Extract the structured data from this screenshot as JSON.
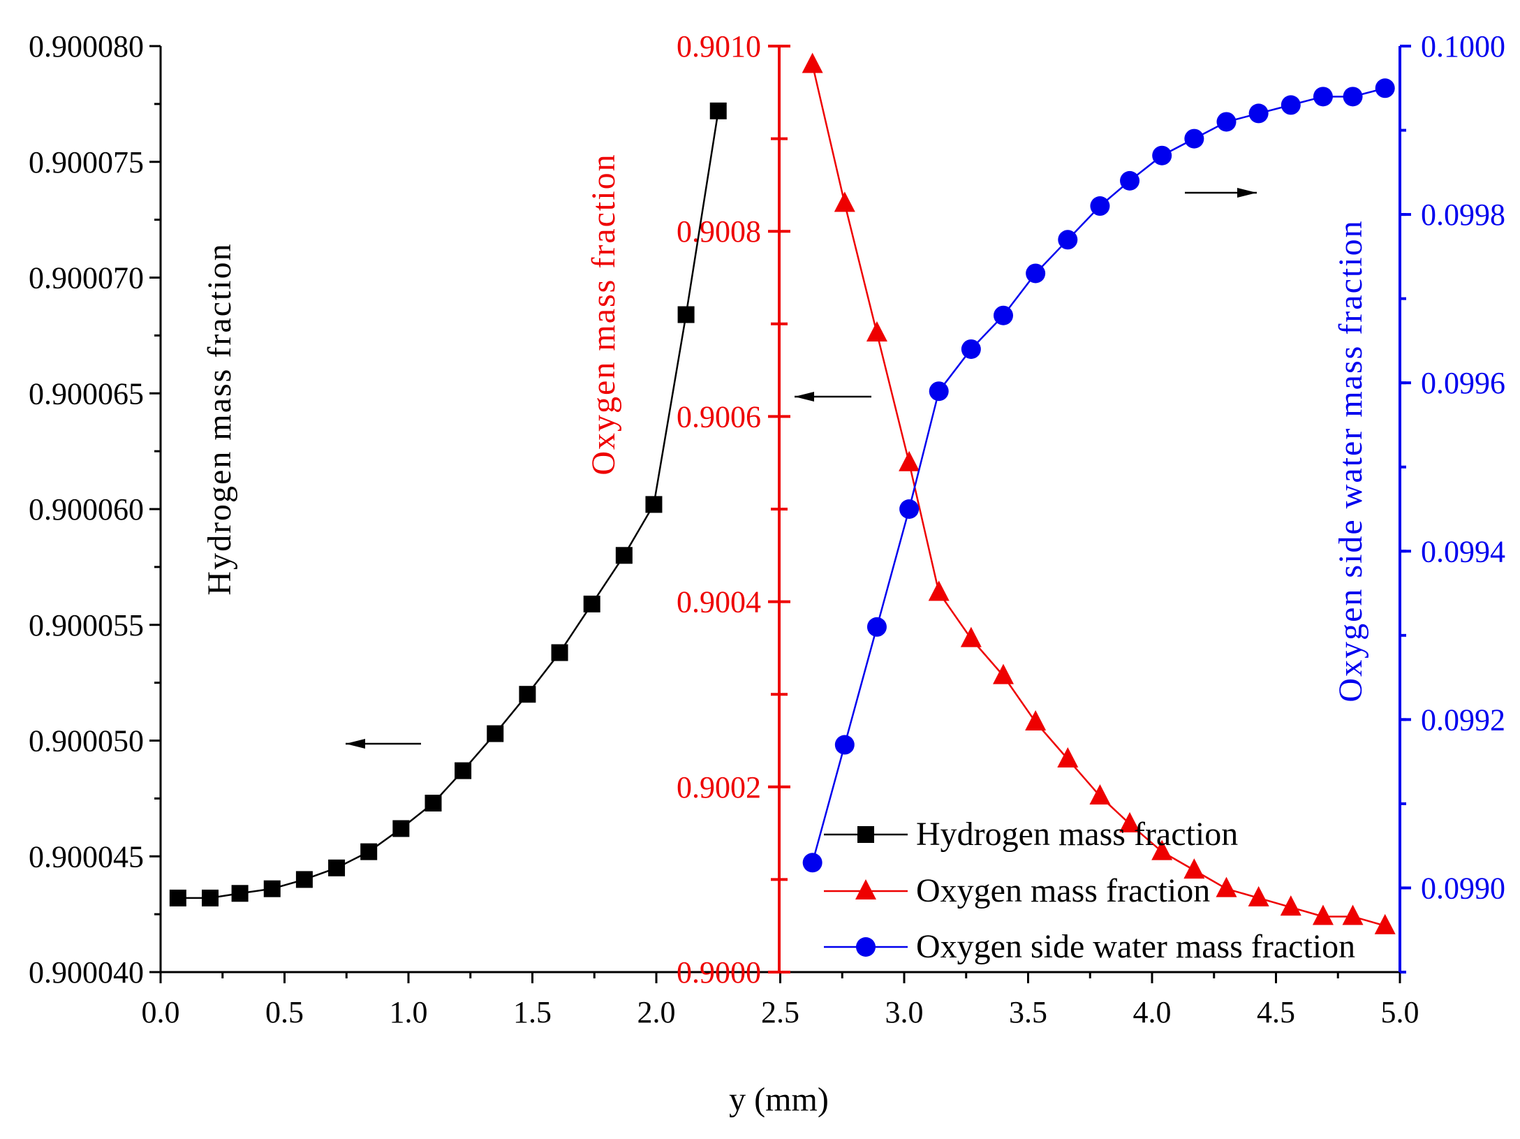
{
  "chart_data": {
    "type": "line",
    "xlabel": "y (mm)",
    "xlim": [
      0,
      5
    ],
    "x_ticks": [
      "0.0",
      "0.5",
      "1.0",
      "1.5",
      "2.0",
      "2.5",
      "3.0",
      "3.5",
      "4.0",
      "4.5",
      "5.0"
    ],
    "axes": {
      "left": {
        "label": "Hydrogen mass fraction",
        "ylim": [
          0.90004,
          0.90008
        ],
        "ticks": [
          "0.900040",
          "0.900045",
          "0.900050",
          "0.900055",
          "0.900060",
          "0.900065",
          "0.900070",
          "0.900075",
          "0.900080"
        ],
        "color": "#000000"
      },
      "middle": {
        "label": "Oxygen mass fraction",
        "ylim": [
          0.9,
          0.901
        ],
        "ticks": [
          "0.9000",
          "0.9002",
          "0.9004",
          "0.9006",
          "0.9008",
          "0.9010"
        ],
        "color": "#ee0000"
      },
      "right": {
        "label": "Oxygen side water mass fraction",
        "ylim": [
          0.0989,
          0.1
        ],
        "ticks": [
          "0.0990",
          "0.0992",
          "0.0994",
          "0.0996",
          "0.0998",
          "0.1000"
        ],
        "color": "#0000ee"
      }
    },
    "series": [
      {
        "name": "Hydrogen mass fraction",
        "axis": "left",
        "marker": "square",
        "color": "#000000",
        "x": [
          0.07,
          0.2,
          0.32,
          0.45,
          0.58,
          0.71,
          0.84,
          0.97,
          1.1,
          1.22,
          1.35,
          1.48,
          1.61,
          1.74,
          1.87,
          1.99,
          2.12,
          2.25
        ],
        "values": [
          0.9000432,
          0.9000432,
          0.9000434,
          0.9000436,
          0.900044,
          0.9000445,
          0.9000452,
          0.9000462,
          0.9000473,
          0.9000487,
          0.9000503,
          0.900052,
          0.9000538,
          0.9000559,
          0.900058,
          0.9000602,
          0.9000684,
          0.9000772
        ]
      },
      {
        "name": "Oxygen mass fraction",
        "axis": "middle",
        "marker": "triangle",
        "color": "#ee0000",
        "x": [
          2.63,
          2.76,
          2.89,
          3.02,
          3.14,
          3.27,
          3.4,
          3.53,
          3.66,
          3.79,
          3.91,
          4.04,
          4.17,
          4.3,
          4.43,
          4.56,
          4.69,
          4.81,
          4.94
        ],
        "values": [
          0.90098,
          0.90083,
          0.90069,
          0.90055,
          0.90041,
          0.90036,
          0.90032,
          0.90027,
          0.90023,
          0.90019,
          0.90016,
          0.90013,
          0.90011,
          0.90009,
          0.90008,
          0.90007,
          0.90006,
          0.90006,
          0.90005
        ]
      },
      {
        "name": "Oxygen side water mass fraction",
        "axis": "right",
        "marker": "circle",
        "color": "#0000ee",
        "x": [
          2.63,
          2.76,
          2.89,
          3.02,
          3.14,
          3.27,
          3.4,
          3.53,
          3.66,
          3.79,
          3.91,
          4.04,
          4.17,
          4.3,
          4.43,
          4.56,
          4.69,
          4.81,
          4.94
        ],
        "values": [
          0.09903,
          0.09917,
          0.09931,
          0.09945,
          0.09959,
          0.09964,
          0.09968,
          0.09973,
          0.09977,
          0.09981,
          0.09984,
          0.09987,
          0.09989,
          0.09991,
          0.09992,
          0.09993,
          0.09994,
          0.09994,
          0.09995
        ]
      }
    ],
    "legend": {
      "position": "bottom-right",
      "entries": [
        "Hydrogen mass fraction",
        "Oxygen mass fraction",
        "Oxygen side water mass fraction"
      ]
    },
    "annotations": [
      {
        "name": "hydrogen-axis-arrow",
        "direction": "left",
        "color": "#000000"
      },
      {
        "name": "oxygen-axis-arrow",
        "direction": "left",
        "color": "#000000"
      },
      {
        "name": "water-axis-arrow",
        "direction": "right",
        "color": "#000000"
      }
    ]
  }
}
